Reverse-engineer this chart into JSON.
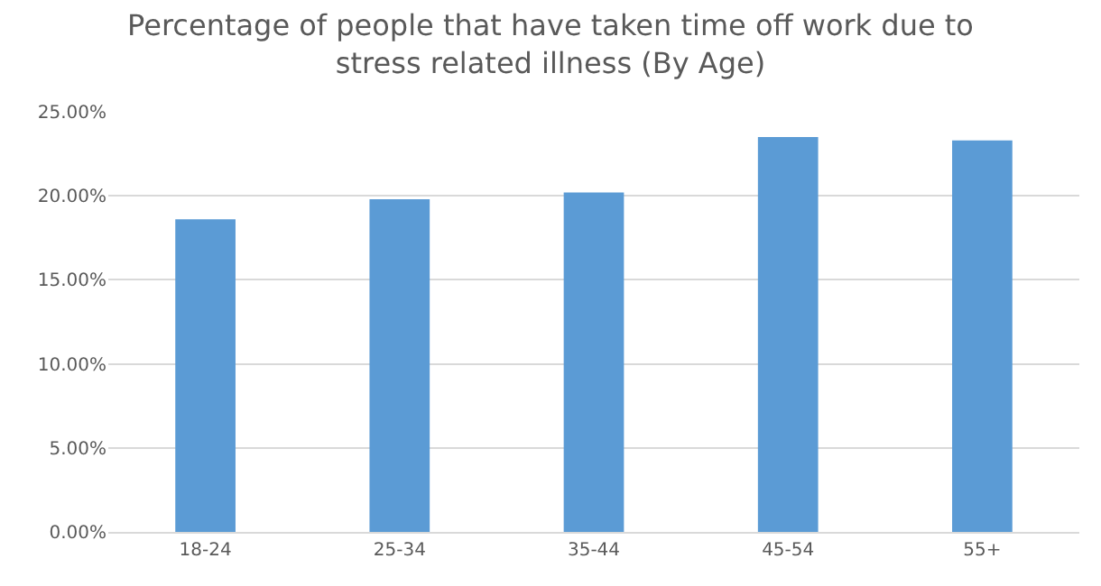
{
  "chart_data": {
    "type": "bar",
    "title": "Percentage of people that have taken time off work due to stress related illness (By Age)",
    "categories": [
      "18-24",
      "25-34",
      "35-44",
      "45-54",
      "55+"
    ],
    "values": [
      18.6,
      19.8,
      20.2,
      23.5,
      23.3
    ],
    "color": "#5b9bd5",
    "ylim": [
      0,
      25
    ],
    "yticks": [
      {
        "value": 0,
        "label": "0.00%"
      },
      {
        "value": 5,
        "label": "5.00%"
      },
      {
        "value": 10,
        "label": "10.00%"
      },
      {
        "value": 15,
        "label": "15.00%"
      },
      {
        "value": 20,
        "label": "20.00%"
      },
      {
        "value": 25,
        "label": "25.00%"
      }
    ],
    "grid": "y",
    "legend": false
  }
}
